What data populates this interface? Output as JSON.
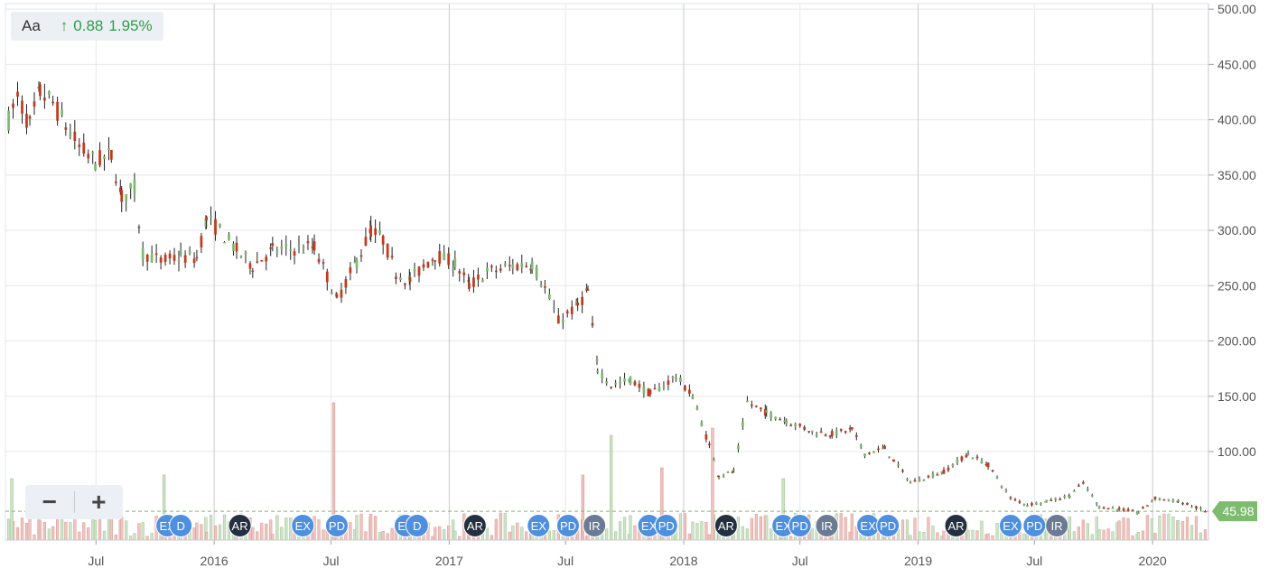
{
  "legend": {
    "font_label": "Aa",
    "arrow": "↑",
    "change": "0.88",
    "change_pct": "1.95%"
  },
  "zoom": {
    "minus_label": "−",
    "plus_label": "+"
  },
  "last_price_label": "45.98",
  "colors": {
    "up": "#7dbb6f",
    "down": "#c13a1d",
    "volume_up": "#cfe3c8",
    "volume_down": "#efc3bf",
    "grid": "#e6e8ec",
    "year_grid": "#c8cbd0",
    "badge_blue": "#4f8fe0",
    "badge_dark": "#24303f",
    "badge_gray": "#6a7b93",
    "last_price": "#7dbb6f"
  },
  "chart_data": {
    "type": "candlestick",
    "title": "",
    "y_axis": {
      "side": "right",
      "min": 20,
      "max": 505,
      "ticks": [
        100,
        150,
        200,
        250,
        300,
        350,
        400,
        450,
        500
      ],
      "tick_labels": [
        "100.00",
        "150.00",
        "200.00",
        "250.00",
        "300.00",
        "350.00",
        "400.00",
        "450.00",
        "500.00"
      ]
    },
    "x_axis": {
      "labels": [
        {
          "date": "2015-07-01",
          "label": "Jul",
          "major": false
        },
        {
          "date": "2016-01-01",
          "label": "2016",
          "major": true
        },
        {
          "date": "2016-07-01",
          "label": "Jul",
          "major": false
        },
        {
          "date": "2017-01-01",
          "label": "2017",
          "major": true
        },
        {
          "date": "2017-07-01",
          "label": "Jul",
          "major": false
        },
        {
          "date": "2018-01-01",
          "label": "2018",
          "major": true
        },
        {
          "date": "2018-07-01",
          "label": "Jul",
          "major": false
        },
        {
          "date": "2019-01-01",
          "label": "2019",
          "major": true
        },
        {
          "date": "2019-07-01",
          "label": "Jul",
          "major": false
        },
        {
          "date": "2020-01-01",
          "label": "2020",
          "major": true
        }
      ],
      "start": "2015-02-10",
      "end": "2020-03-28"
    },
    "price_path": [
      [
        "2015-02-15",
        400
      ],
      [
        "2015-03-01",
        420
      ],
      [
        "2015-03-20",
        395
      ],
      [
        "2015-04-05",
        425
      ],
      [
        "2015-04-25",
        415
      ],
      [
        "2015-05-15",
        395
      ],
      [
        "2015-06-05",
        375
      ],
      [
        "2015-06-30",
        362
      ],
      [
        "2015-07-25",
        368
      ],
      [
        "2015-08-10",
        330
      ],
      [
        "2015-08-30",
        338
      ],
      [
        "2015-09-12",
        280
      ],
      [
        "2015-10-10",
        272
      ],
      [
        "2015-11-10",
        276
      ],
      [
        "2015-12-05",
        275
      ],
      [
        "2015-12-20",
        310
      ],
      [
        "2016-01-10",
        300
      ],
      [
        "2016-02-05",
        282
      ],
      [
        "2016-03-01",
        268
      ],
      [
        "2016-04-01",
        282
      ],
      [
        "2016-05-05",
        283
      ],
      [
        "2016-06-05",
        285
      ],
      [
        "2016-06-25",
        258
      ],
      [
        "2016-07-10",
        237
      ],
      [
        "2016-08-10",
        272
      ],
      [
        "2016-09-01",
        300
      ],
      [
        "2016-09-20",
        292
      ],
      [
        "2016-10-10",
        262
      ],
      [
        "2016-11-01",
        255
      ],
      [
        "2016-12-10",
        278
      ],
      [
        "2017-01-10",
        270
      ],
      [
        "2017-02-01",
        250
      ],
      [
        "2017-03-01",
        262
      ],
      [
        "2017-04-10",
        268
      ],
      [
        "2017-05-10",
        270
      ],
      [
        "2017-05-30",
        248
      ],
      [
        "2017-06-20",
        218
      ],
      [
        "2017-07-20",
        232
      ],
      [
        "2017-08-05",
        245
      ],
      [
        "2017-08-20",
        175
      ],
      [
        "2017-09-10",
        160
      ],
      [
        "2017-10-10",
        165
      ],
      [
        "2017-11-10",
        152
      ],
      [
        "2017-12-20",
        168
      ],
      [
        "2018-01-15",
        150
      ],
      [
        "2018-02-10",
        105
      ],
      [
        "2018-02-25",
        78
      ],
      [
        "2018-03-20",
        82
      ],
      [
        "2018-04-10",
        145
      ],
      [
        "2018-05-10",
        135
      ],
      [
        "2018-06-10",
        128
      ],
      [
        "2018-07-20",
        118
      ],
      [
        "2018-08-20",
        116
      ],
      [
        "2018-09-20",
        120
      ],
      [
        "2018-10-10",
        98
      ],
      [
        "2018-11-10",
        103
      ],
      [
        "2018-12-20",
        72
      ],
      [
        "2019-02-10",
        82
      ],
      [
        "2019-03-20",
        98
      ],
      [
        "2019-04-20",
        88
      ],
      [
        "2019-05-25",
        58
      ],
      [
        "2019-06-20",
        52
      ],
      [
        "2019-07-20",
        55
      ],
      [
        "2019-08-25",
        60
      ],
      [
        "2019-09-15",
        72
      ],
      [
        "2019-10-10",
        50
      ],
      [
        "2019-11-10",
        48
      ],
      [
        "2019-12-10",
        45
      ],
      [
        "2020-01-05",
        58
      ],
      [
        "2020-02-10",
        55
      ],
      [
        "2020-03-25",
        46
      ]
    ],
    "volume_spikes": [
      {
        "date": "2015-02-20",
        "height_ratio": 0.85,
        "up": true
      },
      {
        "date": "2015-10-15",
        "height_ratio": 0.9,
        "up": true
      },
      {
        "date": "2016-07-05",
        "height_ratio": 1.9,
        "up": false
      },
      {
        "date": "2017-07-28",
        "height_ratio": 0.9,
        "up": false
      },
      {
        "date": "2017-09-10",
        "height_ratio": 1.45,
        "up": true
      },
      {
        "date": "2017-11-28",
        "height_ratio": 1.0,
        "up": false
      },
      {
        "date": "2018-02-15",
        "height_ratio": 1.55,
        "up": false
      },
      {
        "date": "2018-06-05",
        "height_ratio": 0.85,
        "up": true
      }
    ],
    "events": [
      {
        "date": "2015-10-20",
        "label": "EX",
        "style": "blue"
      },
      {
        "date": "2015-11-10",
        "label": "D",
        "style": "blue"
      },
      {
        "date": "2016-02-10",
        "label": "AR",
        "style": "dark"
      },
      {
        "date": "2016-05-18",
        "label": "EX",
        "style": "blue"
      },
      {
        "date": "2016-07-10",
        "label": "PD",
        "style": "blue"
      },
      {
        "date": "2016-10-25",
        "label": "EX",
        "style": "blue"
      },
      {
        "date": "2016-11-12",
        "label": "D",
        "style": "blue"
      },
      {
        "date": "2017-02-10",
        "label": "AR",
        "style": "dark"
      },
      {
        "date": "2017-05-20",
        "label": "EX",
        "style": "blue"
      },
      {
        "date": "2017-07-05",
        "label": "PD",
        "style": "blue"
      },
      {
        "date": "2017-08-15",
        "label": "IR",
        "style": "gray"
      },
      {
        "date": "2017-11-08",
        "label": "EX",
        "style": "blue"
      },
      {
        "date": "2017-12-05",
        "label": "PD",
        "style": "blue"
      },
      {
        "date": "2018-03-08",
        "label": "AR",
        "style": "dark"
      },
      {
        "date": "2018-06-05",
        "label": "EX",
        "style": "blue"
      },
      {
        "date": "2018-07-01",
        "label": "PD",
        "style": "blue"
      },
      {
        "date": "2018-08-12",
        "label": "IR",
        "style": "gray"
      },
      {
        "date": "2018-10-15",
        "label": "EX",
        "style": "blue"
      },
      {
        "date": "2018-11-15",
        "label": "PD",
        "style": "blue"
      },
      {
        "date": "2019-03-01",
        "label": "AR",
        "style": "dark"
      },
      {
        "date": "2019-05-25",
        "label": "EX",
        "style": "blue"
      },
      {
        "date": "2019-07-01",
        "label": "PD",
        "style": "blue"
      },
      {
        "date": "2019-08-05",
        "label": "IR",
        "style": "gray"
      }
    ],
    "last_price": 45.98
  }
}
